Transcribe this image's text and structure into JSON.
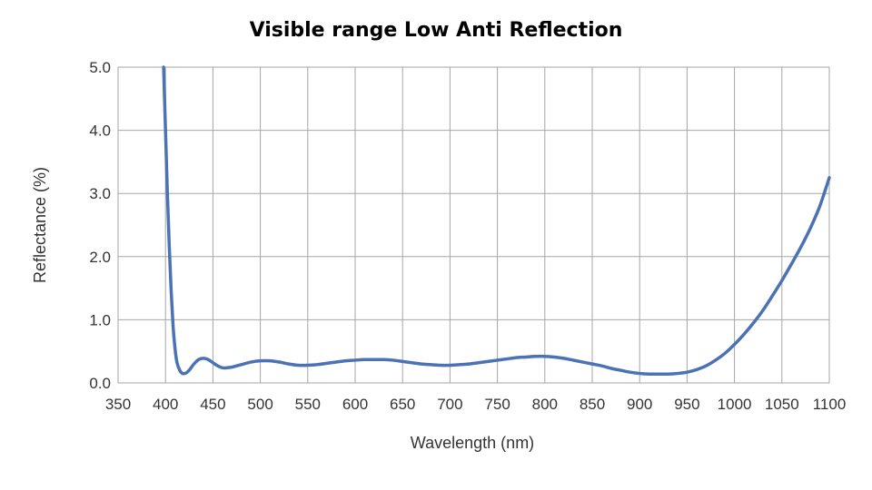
{
  "chart_data": {
    "type": "line",
    "title": "Visible range Low Anti Reflection",
    "xlabel": "Wavelength  (nm)",
    "ylabel": "Reflectance  (%)",
    "xlim": [
      350,
      1100
    ],
    "ylim": [
      0,
      5
    ],
    "x_ticks": [
      350,
      400,
      450,
      500,
      550,
      600,
      650,
      700,
      750,
      800,
      850,
      900,
      950,
      1000,
      1050,
      1100
    ],
    "x_tick_labels": [
      "350",
      "400",
      "450",
      "500",
      "550",
      "600",
      "650",
      "700",
      "750",
      "800",
      "850",
      "900",
      "950",
      "1000",
      "1050",
      "1100"
    ],
    "y_ticks": [
      0,
      1,
      2,
      3,
      4,
      5
    ],
    "y_tick_labels": [
      "0.0",
      "1.0",
      "2.0",
      "3.0",
      "4.0",
      "5.0"
    ],
    "grid": true,
    "legend": "none",
    "series": [
      {
        "color": "#4a72b5",
        "x": [
          398,
          400,
          402,
          404,
          406,
          408,
          410,
          412,
          415,
          418,
          422,
          426,
          430,
          435,
          440,
          445,
          450,
          455,
          460,
          465,
          470,
          475,
          480,
          490,
          500,
          510,
          520,
          530,
          540,
          550,
          560,
          570,
          580,
          590,
          600,
          610,
          620,
          630,
          640,
          650,
          660,
          670,
          680,
          690,
          700,
          710,
          720,
          730,
          740,
          750,
          760,
          770,
          780,
          790,
          800,
          810,
          820,
          830,
          840,
          850,
          860,
          870,
          880,
          890,
          900,
          910,
          920,
          930,
          940,
          950,
          960,
          970,
          980,
          990,
          1000,
          1010,
          1020,
          1030,
          1040,
          1050,
          1060,
          1070,
          1080,
          1090,
          1100
        ],
        "y": [
          5.0,
          4.0,
          3.0,
          2.15,
          1.45,
          0.9,
          0.55,
          0.33,
          0.2,
          0.15,
          0.16,
          0.22,
          0.3,
          0.37,
          0.39,
          0.37,
          0.32,
          0.27,
          0.24,
          0.24,
          0.25,
          0.27,
          0.29,
          0.33,
          0.35,
          0.35,
          0.33,
          0.3,
          0.28,
          0.28,
          0.29,
          0.31,
          0.33,
          0.35,
          0.36,
          0.37,
          0.37,
          0.37,
          0.36,
          0.34,
          0.32,
          0.3,
          0.29,
          0.28,
          0.28,
          0.29,
          0.3,
          0.32,
          0.34,
          0.36,
          0.38,
          0.4,
          0.41,
          0.42,
          0.42,
          0.41,
          0.39,
          0.36,
          0.33,
          0.3,
          0.27,
          0.23,
          0.2,
          0.17,
          0.15,
          0.14,
          0.14,
          0.14,
          0.15,
          0.17,
          0.21,
          0.27,
          0.36,
          0.47,
          0.61,
          0.77,
          0.95,
          1.15,
          1.38,
          1.62,
          1.88,
          2.15,
          2.45,
          2.8,
          3.25
        ]
      }
    ]
  }
}
